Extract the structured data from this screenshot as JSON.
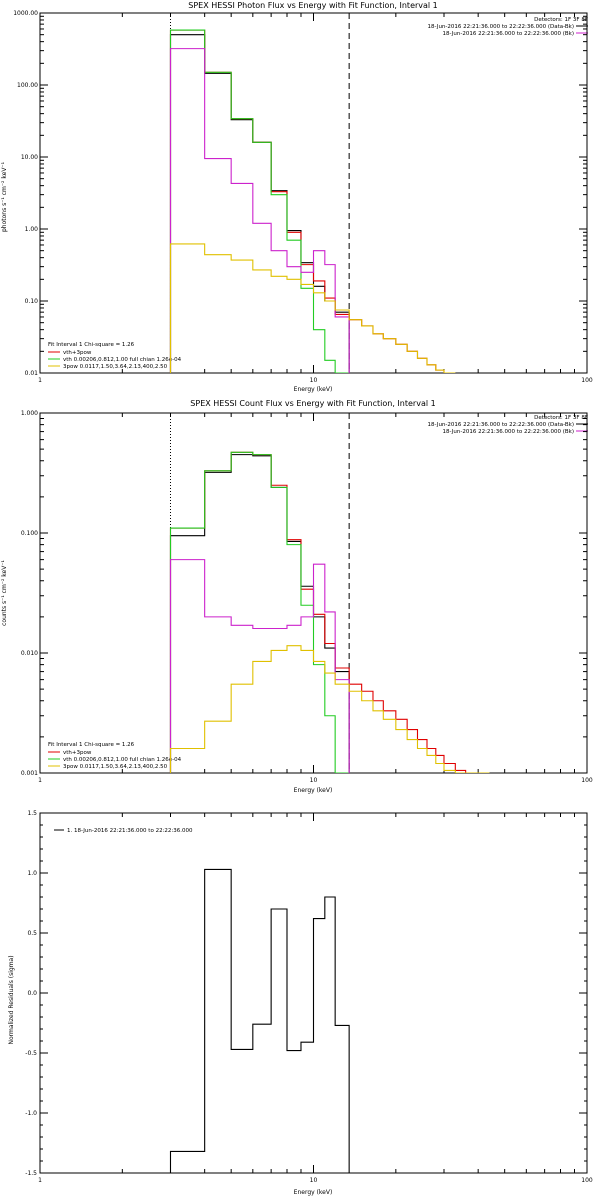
{
  "colors": {
    "black": "#000000",
    "red": "#e00000",
    "green": "#22cc22",
    "magenta": "#cc22cc",
    "yellow": "#e0c000"
  },
  "chart_data": [
    {
      "type": "line",
      "title": "SPEX HESSI Photon Flux vs Energy with Fit Function, Interval 1",
      "xlabel": "Energy (keV)",
      "ylabel": "photons s⁻¹ cm⁻² keV⁻¹",
      "xscale": "log",
      "yscale": "log",
      "xlim": [
        1,
        100
      ],
      "ylim": [
        0.01,
        1000
      ],
      "xticks": [
        "1",
        "10",
        "100"
      ],
      "yticks": [
        "0.01",
        "0.10",
        "1.00",
        "10.00",
        "100.00",
        "1000.00"
      ],
      "vlines": [
        {
          "x": 3.0,
          "style": "dotted"
        },
        {
          "x": 13.5,
          "style": "dashed"
        }
      ],
      "info": [
        "Detectors: 1F 3F 8F",
        "18-Jun-2016 22:21:36.000 to 22:22:36.000 (Data-Bk)",
        "18-Jun-2016 22:21:36.000 to 22:22:36.000 (Bk)"
      ],
      "legend_title": "Fit Interval 1   Chi-square = 1.26",
      "legend": [
        "vth+3pow",
        "vth 0.00206,0.812,1.00  full chian 1.26e-04",
        "3pow 0.0117,1.50,3.64,2.13,400,2.50"
      ],
      "edges": [
        3,
        4,
        5,
        6,
        7,
        8,
        9,
        10,
        11,
        12,
        13.5,
        15,
        16.5,
        18,
        20,
        22,
        24,
        26,
        28,
        30,
        33
      ],
      "series": [
        {
          "name": "Data-Bk",
          "color": "#000000",
          "values": [
            500,
            145,
            33,
            16,
            3.4,
            0.95,
            0.34,
            0.16,
            0.1,
            0.07
          ]
        },
        {
          "name": "vth+3pow",
          "color": "#e00000",
          "values": [
            580,
            150,
            34,
            16,
            3.3,
            0.9,
            0.32,
            0.19,
            0.11,
            0.065,
            0.055,
            0.045,
            0.035,
            0.03,
            0.025,
            0.02,
            0.016,
            0.013,
            0.011,
            0.01
          ]
        },
        {
          "name": "vth",
          "color": "#22cc22",
          "values": [
            580,
            150,
            34,
            16,
            3.0,
            0.7,
            0.15,
            0.04,
            0.015,
            0.008
          ]
        },
        {
          "name": "Bk",
          "color": "#cc22cc",
          "values": [
            320,
            9.5,
            4.3,
            1.2,
            0.5,
            0.3,
            0.25,
            0.5,
            0.32,
            0.06
          ]
        },
        {
          "name": "3pow",
          "color": "#e0c000",
          "values": [
            0.62,
            0.44,
            0.37,
            0.27,
            0.22,
            0.2,
            0.17,
            0.13,
            0.1,
            0.075,
            0.055,
            0.045,
            0.035,
            0.03,
            0.025,
            0.02,
            0.016,
            0.013,
            0.011,
            0.01
          ]
        }
      ]
    },
    {
      "type": "line",
      "title": "SPEX HESSI Count Flux vs Energy with Fit Function, Interval 1",
      "xlabel": "Energy (keV)",
      "ylabel": "counts s⁻¹ cm⁻² keV⁻¹",
      "xscale": "log",
      "yscale": "log",
      "xlim": [
        1,
        100
      ],
      "ylim": [
        0.001,
        1
      ],
      "xticks": [
        "1",
        "10",
        "100"
      ],
      "yticks": [
        "0.001",
        "0.010",
        "0.100",
        "1.000"
      ],
      "vlines": [
        {
          "x": 3.0,
          "style": "dotted"
        },
        {
          "x": 13.5,
          "style": "dashed"
        }
      ],
      "info": [
        "Detectors: 1F 3F 8F",
        "18-Jun-2016 22:21:36.000 to 22:22:36.000 (Data-Bk)",
        "18-Jun-2016 22:21:36.000 to 22:22:36.000 (Bk)"
      ],
      "legend_title": "Fit Interval 1   Chi-square = 1.26",
      "legend": [
        "vth+3pow",
        "vth 0.00206,0.812,1.00  full chian 1.26e-04",
        "3pow 0.0117,1.50,3.64,2.13,400,2.50"
      ],
      "edges": [
        3,
        4,
        5,
        6,
        7,
        8,
        9,
        10,
        11,
        12,
        13.5,
        15,
        16.5,
        18,
        20,
        22,
        24,
        26,
        28,
        30,
        33,
        36,
        40,
        44
      ],
      "series": [
        {
          "name": "Data-Bk",
          "color": "#000000",
          "values": [
            0.095,
            0.32,
            0.45,
            0.44,
            0.24,
            0.085,
            0.036,
            0.02,
            0.011,
            0.007
          ]
        },
        {
          "name": "vth+3pow",
          "color": "#e00000",
          "values": [
            0.11,
            0.33,
            0.47,
            0.45,
            0.25,
            0.088,
            0.034,
            0.021,
            0.012,
            0.0075,
            0.0055,
            0.0048,
            0.004,
            0.0033,
            0.0028,
            0.0023,
            0.0019,
            0.0016,
            0.0014,
            0.0012,
            0.00105,
            0.001,
            0.001
          ]
        },
        {
          "name": "vth",
          "color": "#22cc22",
          "values": [
            0.11,
            0.33,
            0.47,
            0.45,
            0.24,
            0.08,
            0.025,
            0.008,
            0.003,
            0.001
          ]
        },
        {
          "name": "Bk",
          "color": "#cc22cc",
          "values": [
            0.06,
            0.02,
            0.017,
            0.016,
            0.016,
            0.017,
            0.02,
            0.055,
            0.022,
            0.006
          ]
        },
        {
          "name": "3pow",
          "color": "#e0c000",
          "values": [
            0.0016,
            0.0027,
            0.0055,
            0.0085,
            0.0105,
            0.0115,
            0.0105,
            0.0085,
            0.0068,
            0.0055,
            0.0048,
            0.004,
            0.0033,
            0.0028,
            0.0023,
            0.0019,
            0.0016,
            0.0014,
            0.0012,
            0.00105,
            0.001,
            0.001,
            0.001
          ]
        }
      ]
    },
    {
      "type": "line",
      "title": "",
      "xlabel": "Energy (keV)",
      "ylabel": "Normalized Residuals (sigma)",
      "xscale": "log",
      "yscale": "linear",
      "xlim": [
        1,
        100
      ],
      "ylim": [
        -1.5,
        1.5
      ],
      "xticks": [
        "1",
        "10",
        "100"
      ],
      "yticks": [
        "-1.5",
        "-1.0",
        "-0.5",
        "0.0",
        "0.5",
        "1.0",
        "1.5"
      ],
      "legend": [
        "1. 18-Jun-2016 22:21:36.000 to 22:22:36.000"
      ],
      "edges": [
        3,
        4,
        5,
        6,
        7,
        8,
        9,
        10,
        11,
        12,
        13.5
      ],
      "series": [
        {
          "name": "1. 18-Jun-2016 22:21:36.000 to 22:22:36.000",
          "color": "#000000",
          "values": [
            -1.32,
            1.03,
            -0.47,
            -0.26,
            0.7,
            -0.48,
            -0.41,
            0.62,
            0.8,
            -0.27
          ]
        }
      ]
    }
  ]
}
